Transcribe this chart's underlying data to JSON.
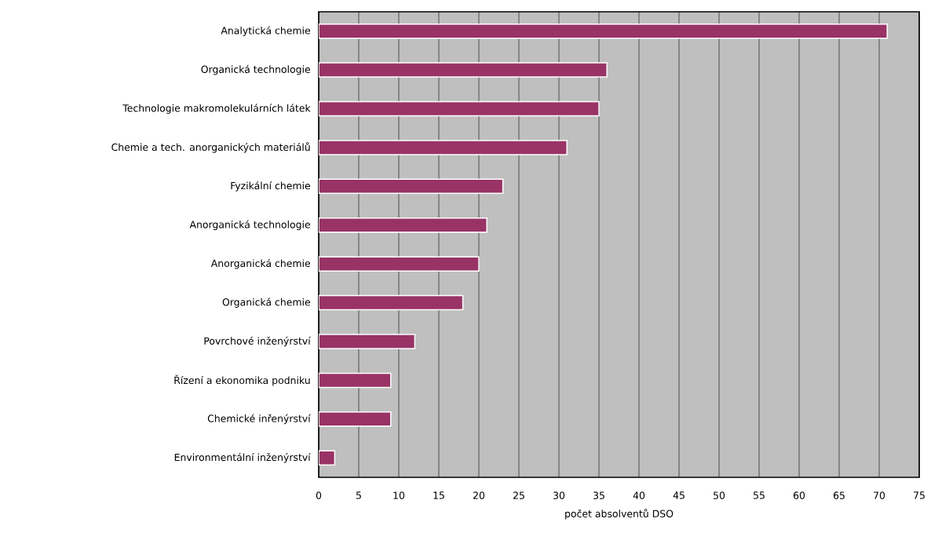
{
  "chart_data": {
    "type": "bar",
    "orientation": "horizontal",
    "xlabel": "počet absolventů DSO",
    "categories": [
      "Analytická chemie",
      "Organická technologie",
      "Technologie makromolekulárních látek",
      "Chemie a tech. anorganických materiálů",
      "Fyzikální chemie",
      "Anorganická technologie",
      "Anorganická chemie",
      "Organická chemie",
      "Povrchové inženýrství",
      "Řízení a ekonomika podniku",
      "Chemické inřenýrství",
      "Environmentální inženýrství"
    ],
    "values": [
      71,
      36,
      35,
      31,
      23,
      21,
      20,
      18,
      12,
      9,
      9,
      2
    ],
    "color": "#993366",
    "xlim": [
      0,
      75
    ],
    "xticks": [
      0,
      5,
      10,
      15,
      20,
      25,
      30,
      35,
      40,
      45,
      50,
      55,
      60,
      65,
      70,
      75
    ],
    "grid": "x"
  }
}
